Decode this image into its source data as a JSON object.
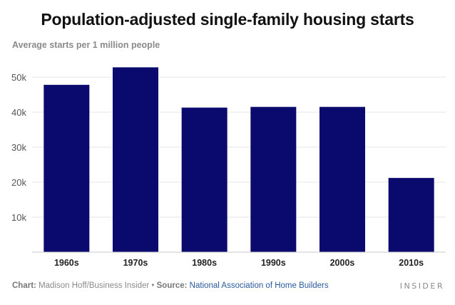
{
  "chart_data": {
    "type": "bar",
    "title": "Population-adjusted single-family housing starts",
    "subtitle": "Average starts per 1 million people",
    "categories": [
      "1960s",
      "1970s",
      "1980s",
      "1990s",
      "2000s",
      "2010s"
    ],
    "values": [
      47800,
      52800,
      41300,
      41500,
      41500,
      21200
    ],
    "ylim": [
      0,
      57000
    ],
    "yticks": [
      10000,
      20000,
      30000,
      40000,
      50000
    ],
    "ytick_labels": [
      "10k",
      "20k",
      "30k",
      "40k",
      "50k"
    ],
    "bar_color": "#0a0a6e",
    "grid": true
  },
  "footer": {
    "chart_label": "Chart:",
    "chart_author": "Madison Hoff/Business Insider",
    "separator": "•",
    "source_label": "Source:",
    "source_name": "National Association of Home Builders"
  },
  "brand": "INSIDER"
}
